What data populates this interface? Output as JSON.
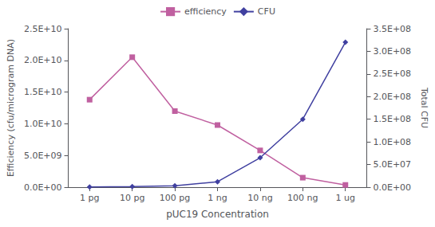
{
  "chart_data": {
    "type": "line",
    "xlabel": "pUC19 Concentration",
    "ylabel": "Efficiency (cfu/microgram DNA)",
    "y2label": "Total CFU",
    "categories": [
      "1 pg",
      "10 pg",
      "100 pg",
      "1 ng",
      "10 ng",
      "100 ng",
      "1 ug"
    ],
    "series": [
      {
        "name": "efficiency",
        "color": "#c060a0",
        "marker": "square",
        "line_style": "solid",
        "values": [
          13800000000.0,
          20500000000.0,
          12000000000.0,
          9800000000.0,
          5800000000.0,
          1500000000.0,
          350000000.0
        ]
      },
      {
        "name": "CFU",
        "color": "#4040a0",
        "marker": "diamond",
        "line_style": "solid",
        "axis": "y2",
        "values": [
          500000.0,
          1500000.0,
          3000000.0,
          12000000.0,
          65000000.0,
          150000000.0,
          320000000.0
        ]
      }
    ],
    "ylim": [
      0,
      25000000000.0
    ],
    "yticks": [
      {
        "value": 0,
        "label": "0.0E+00"
      },
      {
        "value": 5000000000.0,
        "label": "5.0E+09"
      },
      {
        "value": 10000000000.0,
        "label": "1.0E+10"
      },
      {
        "value": 15000000000.0,
        "label": "1.5E+10"
      },
      {
        "value": 20000000000.0,
        "label": "2.0E+10"
      },
      {
        "value": 25000000000.0,
        "label": "2.5E+10"
      }
    ],
    "y2lim": [
      0,
      350000000.0
    ],
    "y2ticks": [
      {
        "value": 0,
        "label": "0.0E+00"
      },
      {
        "value": 50000000.0,
        "label": "5.0E+07"
      },
      {
        "value": 100000000.0,
        "label": "1.0E+08"
      },
      {
        "value": 150000000.0,
        "label": "1.5E+08"
      },
      {
        "value": 200000000.0,
        "label": "2.0E+08"
      },
      {
        "value": 250000000.0,
        "label": "2.5E+08"
      },
      {
        "value": 300000000.0,
        "label": "3.0E+08"
      },
      {
        "value": 350000000.0,
        "label": "3.5E+08"
      }
    ],
    "grid": false,
    "legend": "top"
  }
}
